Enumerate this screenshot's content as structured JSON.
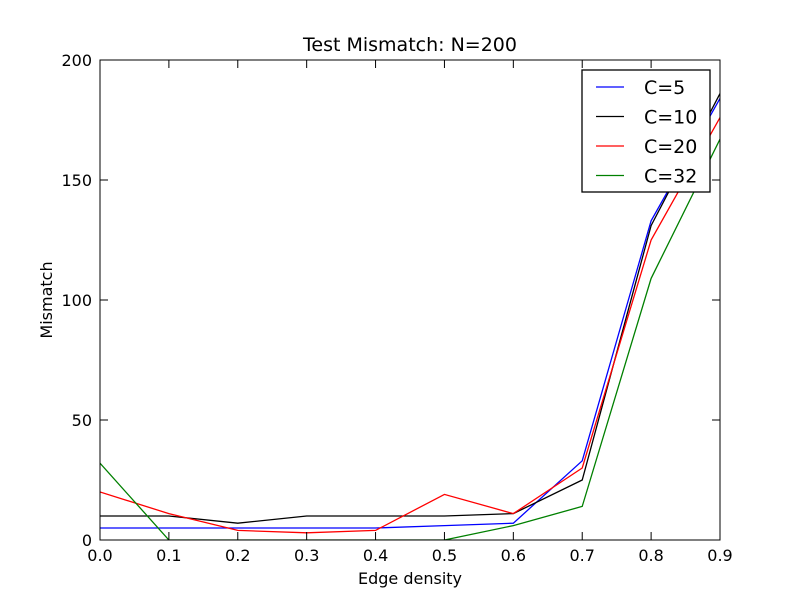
{
  "chart_data": {
    "type": "line",
    "title": "Test Mismatch: N=200",
    "xlabel": "Edge density",
    "ylabel": "Mismatch",
    "x": [
      0.0,
      0.1,
      0.2,
      0.3,
      0.4,
      0.5,
      0.6,
      0.7,
      0.8,
      0.9
    ],
    "xlim": [
      0.0,
      0.9
    ],
    "ylim": [
      0,
      200
    ],
    "xticks": [
      "0.0",
      "0.1",
      "0.2",
      "0.3",
      "0.4",
      "0.5",
      "0.6",
      "0.7",
      "0.8",
      "0.9"
    ],
    "yticks": [
      "0",
      "50",
      "100",
      "150",
      "200"
    ],
    "xtick_values": [
      0.0,
      0.1,
      0.2,
      0.3,
      0.4,
      0.5,
      0.6,
      0.7,
      0.8,
      0.9
    ],
    "ytick_values": [
      0,
      50,
      100,
      150,
      200
    ],
    "grid": false,
    "legend_position": "top-right",
    "series": [
      {
        "name": "C=5",
        "color": "#0000ff",
        "values": [
          5,
          5,
          5,
          5,
          5,
          6,
          7,
          33,
          133,
          184
        ]
      },
      {
        "name": "C=10",
        "color": "#000000",
        "values": [
          10,
          10,
          7,
          10,
          10,
          10,
          11,
          25,
          131,
          186
        ]
      },
      {
        "name": "C=20",
        "color": "#ff0000",
        "values": [
          20,
          11,
          4,
          3,
          4,
          19,
          11,
          30,
          125,
          176
        ]
      },
      {
        "name": "C=32",
        "color": "#008000",
        "values": [
          32,
          0,
          0,
          0,
          0,
          0,
          6,
          14,
          109,
          167
        ]
      }
    ]
  }
}
